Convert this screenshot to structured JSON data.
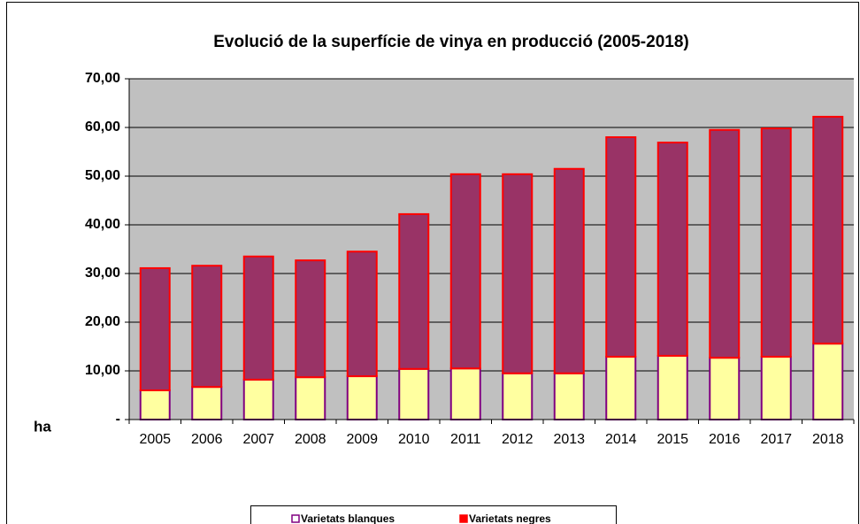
{
  "chart_data": {
    "type": "stacked_bar",
    "title": "Evolució de la superfície de vinya en producció (2005-2018)",
    "ylabel": "ha",
    "categories": [
      "2005",
      "2006",
      "2007",
      "2008",
      "2009",
      "2010",
      "2011",
      "2012",
      "2013",
      "2014",
      "2015",
      "2016",
      "2017",
      "2018"
    ],
    "series": [
      {
        "name": "Varietats blanques",
        "color": "#ffffa0",
        "edgecolor": "#800080",
        "values": [
          6.0,
          6.7,
          8.2,
          8.7,
          8.9,
          10.4,
          10.5,
          9.5,
          9.5,
          12.9,
          13.1,
          12.7,
          12.9,
          15.6
        ]
      },
      {
        "name": "Varietats negres",
        "color": "#993366",
        "edgecolor": "#ff0000",
        "values": [
          25.1,
          24.9,
          25.3,
          24.0,
          25.6,
          31.8,
          39.9,
          40.9,
          42.0,
          45.1,
          43.8,
          46.8,
          46.9,
          46.6
        ]
      }
    ],
    "ylim": [
      0,
      70
    ],
    "yticks": [
      {
        "value": 0,
        "label": "-"
      },
      {
        "value": 10,
        "label": "10,00"
      },
      {
        "value": 20,
        "label": "20,00"
      },
      {
        "value": 30,
        "label": "30,00"
      },
      {
        "value": 40,
        "label": "40,00"
      },
      {
        "value": 50,
        "label": "50,00"
      },
      {
        "value": 60,
        "label": "60,00"
      },
      {
        "value": 70,
        "label": "70,00"
      }
    ],
    "grid": true,
    "legend": "bottom"
  }
}
